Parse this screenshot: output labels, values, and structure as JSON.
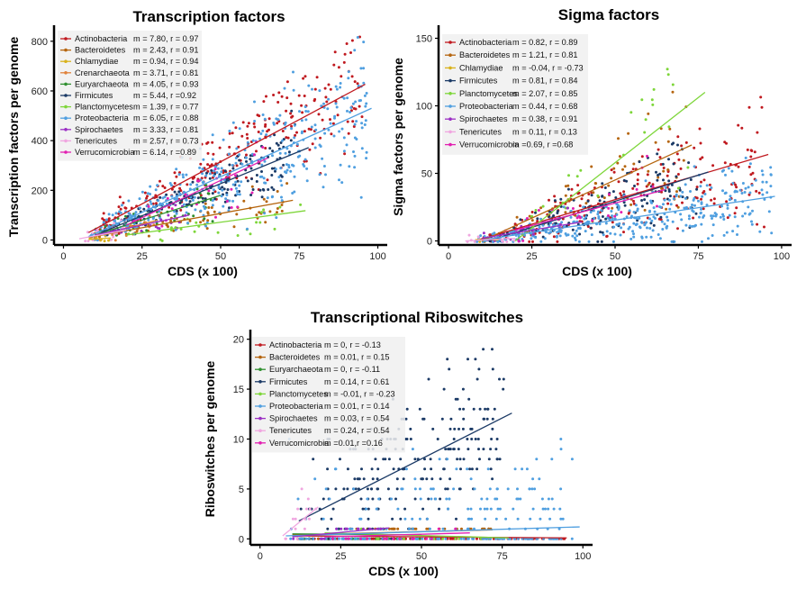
{
  "chart_data": [
    {
      "id": "tf",
      "type": "scatter",
      "title": "Transcription factors",
      "xlabel": "CDS (x 100)",
      "ylabel": "Transcription factors per genome",
      "xlim": [
        -3,
        103
      ],
      "ylim": [
        -20,
        850
      ],
      "xticks": [
        0,
        25,
        50,
        75,
        100
      ],
      "yticks": [
        0,
        200,
        400,
        600,
        800
      ],
      "legend_position": "top-left",
      "series": [
        {
          "name": "Actinobacteria",
          "stats": "m = 7.80, r = 0.97",
          "color": "#c0191f",
          "line": [
            [
              8,
              30
            ],
            [
              96,
              627
            ]
          ],
          "cloud": {
            "x": [
              10,
              95
            ],
            "n": 230,
            "scatter": 0.18,
            "seed": 11
          }
        },
        {
          "name": "Bacteroidetes",
          "stats": "m = 2.43, r = 0.91",
          "color": "#b5650e",
          "line": [
            [
              8,
              10
            ],
            [
              73,
              160
            ]
          ],
          "cloud": {
            "x": [
              10,
              72
            ],
            "n": 70,
            "scatter": 0.2,
            "seed": 12
          }
        },
        {
          "name": "Chlamydiae",
          "stats": "m = 0.94, r = 0.94",
          "color": "#d9b21c",
          "line": [
            [
              8,
              2
            ],
            [
              15,
              8
            ]
          ],
          "cloud": {
            "x": [
              8,
              15
            ],
            "n": 10,
            "scatter": 0.2,
            "seed": 13
          }
        },
        {
          "name": "Crenarchaeota",
          "stats": "m = 3.71, r = 0.81",
          "color": "#e0823b",
          "line": [
            [
              10,
              15
            ],
            [
              30,
              80
            ]
          ],
          "cloud": {
            "x": [
              10,
              30
            ],
            "n": 20,
            "scatter": 0.25,
            "seed": 14
          }
        },
        {
          "name": "Euryarchaeota",
          "stats": "m = 4.05, r = 0.93",
          "color": "#2f8f2f",
          "line": [
            [
              10,
              20
            ],
            [
              50,
              180
            ]
          ],
          "cloud": {
            "x": [
              10,
              50
            ],
            "n": 40,
            "scatter": 0.22,
            "seed": 15
          }
        },
        {
          "name": "Firmicutes",
          "stats": "m = 5.44, r =0.92",
          "color": "#1b3a66",
          "line": [
            [
              12,
              30
            ],
            [
              78,
              372
            ]
          ],
          "cloud": {
            "x": [
              12,
              75
            ],
            "n": 150,
            "scatter": 0.2,
            "seed": 16
          }
        },
        {
          "name": "Planctomycetes",
          "stats": "m = 1.39, r = 0.77",
          "color": "#7ed63a",
          "line": [
            [
              20,
              20
            ],
            [
              77,
              118
            ]
          ],
          "cloud": {
            "x": [
              20,
              76
            ],
            "n": 25,
            "scatter": 0.3,
            "seed": 17
          }
        },
        {
          "name": "Proteobacteria",
          "stats": "m = 6.05, r = 0.88",
          "color": "#4f9fe0",
          "line": [
            [
              8,
              14
            ],
            [
              98,
              530
            ]
          ],
          "cloud": {
            "x": [
              8,
              97
            ],
            "n": 380,
            "scatter": 0.28,
            "seed": 18
          }
        },
        {
          "name": "Spirochaetes",
          "stats": "m = 3.33, r = 0.81",
          "color": "#9b2fc4",
          "line": [
            [
              10,
              20
            ],
            [
              40,
              100
            ]
          ],
          "cloud": {
            "x": [
              10,
              40
            ],
            "n": 20,
            "scatter": 0.25,
            "seed": 19
          }
        },
        {
          "name": "Tenericutes",
          "stats": "m = 2.57, r = 0.73",
          "color": "#f0a6e0",
          "line": [
            [
              5,
              5
            ],
            [
              20,
              40
            ]
          ],
          "cloud": {
            "x": [
              5,
              20
            ],
            "n": 20,
            "scatter": 0.3,
            "seed": 20
          }
        },
        {
          "name": "Verrucomicrobia",
          "stats": "m = 6.14, r =0.89",
          "color": "#e21fb1",
          "line": [
            [
              20,
              60
            ],
            [
              65,
              330
            ]
          ],
          "cloud": {
            "x": [
              20,
              65
            ],
            "n": 25,
            "scatter": 0.25,
            "seed": 21
          }
        }
      ]
    },
    {
      "id": "sigma",
      "type": "scatter",
      "title": "Sigma factors",
      "xlabel": "CDS (x 100)",
      "ylabel": "Sigma factors per genome",
      "xlim": [
        -3,
        103
      ],
      "ylim": [
        -3,
        157
      ],
      "xticks": [
        0,
        25,
        50,
        75,
        100
      ],
      "yticks": [
        0,
        50,
        100,
        150
      ],
      "legend_position": "top-left",
      "series": [
        {
          "name": "Actinobacteria",
          "stats": "m = 0.82, r = 0.89",
          "color": "#c0191f",
          "line": [
            [
              8,
              0
            ],
            [
              96,
              64
            ]
          ],
          "cloud": {
            "x": [
              10,
              95
            ],
            "n": 200,
            "scatter": 0.35,
            "seed": 31
          }
        },
        {
          "name": "Bacteroidetes",
          "stats": "m = 1.21, r = 0.81",
          "color": "#b5650e",
          "line": [
            [
              10,
              0
            ],
            [
              73,
              71
            ]
          ],
          "cloud": {
            "x": [
              10,
              72
            ],
            "n": 70,
            "scatter": 0.35,
            "seed": 32
          }
        },
        {
          "name": "Chlamydiae",
          "stats": "m = -0.04, r = -0.73",
          "color": "#d9b21c",
          "line": [
            [
              8,
              1
            ],
            [
              15,
              0.7
            ]
          ],
          "cloud": {
            "x": [
              8,
              15
            ],
            "n": 10,
            "scatter": 0.2,
            "seed": 33
          }
        },
        {
          "name": "Firmicutes",
          "stats": "m = 0.81, r = 0.84",
          "color": "#1b3a66",
          "line": [
            [
              12,
              0
            ],
            [
              78,
              51
            ]
          ],
          "cloud": {
            "x": [
              12,
              75
            ],
            "n": 150,
            "scatter": 0.35,
            "seed": 34
          }
        },
        {
          "name": "Planctomycetes",
          "stats": "m = 2.07, r = 0.85",
          "color": "#7ed63a",
          "line": [
            [
              20,
              0
            ],
            [
              77,
              110
            ]
          ],
          "cloud": {
            "x": [
              20,
              76
            ],
            "n": 25,
            "scatter": 0.35,
            "seed": 35
          }
        },
        {
          "name": "Proteobacteria",
          "stats": "m = 0.44, r = 0.68",
          "color": "#4f9fe0",
          "line": [
            [
              8,
              0
            ],
            [
              98,
              33
            ]
          ],
          "cloud": {
            "x": [
              8,
              97
            ],
            "n": 380,
            "scatter": 0.45,
            "seed": 36
          }
        },
        {
          "name": "Spirochaetes",
          "stats": "m = 0.38, r = 0.91",
          "color": "#9b2fc4",
          "line": [
            [
              10,
              2
            ],
            [
              40,
              14
            ]
          ],
          "cloud": {
            "x": [
              10,
              40
            ],
            "n": 20,
            "scatter": 0.3,
            "seed": 37
          }
        },
        {
          "name": "Tenericutes",
          "stats": "m = 0.11, r = 0.13",
          "color": "#f0a6e0",
          "line": [
            [
              5,
              0
            ],
            [
              20,
              2
            ]
          ],
          "cloud": {
            "x": [
              5,
              20
            ],
            "n": 15,
            "scatter": 0.5,
            "seed": 38
          }
        },
        {
          "name": "Verrucomicrobia",
          "stats": "m =0.69, r =0.68",
          "color": "#e21fb1",
          "line": [
            [
              20,
              8
            ],
            [
              65,
              38
            ]
          ],
          "cloud": {
            "x": [
              20,
              65
            ],
            "n": 25,
            "scatter": 0.35,
            "seed": 39
          }
        }
      ]
    },
    {
      "id": "ribo",
      "type": "scatter",
      "title": "Transcriptional Riboswitches",
      "xlabel": "CDS (x 100)",
      "ylabel": "Riboswitches per genome",
      "xlim": [
        -3,
        103
      ],
      "ylim": [
        -0.6,
        20.6
      ],
      "xticks": [
        0,
        25,
        50,
        75,
        100
      ],
      "yticks": [
        0,
        5,
        10,
        15,
        20
      ],
      "legend_position": "top-left",
      "series": [
        {
          "name": "Actinobacteria",
          "stats": "m = 0, r = -0.13",
          "color": "#c0191f",
          "line": [
            [
              10,
              0.3
            ],
            [
              95,
              0.1
            ]
          ],
          "cloud": {
            "x": [
              10,
              95
            ],
            "n": 100,
            "scatter": 0.0,
            "seed": 41
          }
        },
        {
          "name": "Bacteroidetes",
          "stats": "m = 0.01, r = 0.15",
          "color": "#b5650e",
          "line": [
            [
              10,
              0.4
            ],
            [
              72,
              0.9
            ]
          ],
          "cloud": {
            "x": [
              10,
              72
            ],
            "n": 40,
            "scatter": 0.0,
            "seed": 42
          }
        },
        {
          "name": "Euryarchaeota",
          "stats": "m = 0, r = -0.11",
          "color": "#2f8f2f",
          "line": [
            [
              10,
              0.5
            ],
            [
              50,
              0.4
            ]
          ],
          "cloud": {
            "x": [
              10,
              50
            ],
            "n": 25,
            "scatter": 0.0,
            "seed": 43
          }
        },
        {
          "name": "Firmicutes",
          "stats": "m = 0.14, r = 0.61",
          "color": "#1b3a66",
          "line": [
            [
              12,
              1.8
            ],
            [
              78,
              12.6
            ]
          ],
          "cloud": {
            "x": [
              12,
              76
            ],
            "n": 220,
            "scatter": 0.55,
            "seed": 44
          }
        },
        {
          "name": "Planctomycetes",
          "stats": "m = -0.01, r = -0.23",
          "color": "#7ed63a",
          "line": [
            [
              20,
              0.6
            ],
            [
              77,
              0.1
            ]
          ],
          "cloud": {
            "x": [
              20,
              76
            ],
            "n": 15,
            "scatter": 0.0,
            "seed": 45
          }
        },
        {
          "name": "Proteobacteria",
          "stats": "m = 0.01, r = 0.14",
          "color": "#4f9fe0",
          "line": [
            [
              8,
              0.3
            ],
            [
              99,
              1.2
            ]
          ],
          "cloud": {
            "x": [
              8,
              97
            ],
            "n": 220,
            "scatter": 0.6,
            "seed": 46
          }
        },
        {
          "name": "Spirochaetes",
          "stats": "m = 0.03, r = 0.54",
          "color": "#9b2fc4",
          "line": [
            [
              10,
              0.2
            ],
            [
              40,
              1.1
            ]
          ],
          "cloud": {
            "x": [
              10,
              40
            ],
            "n": 15,
            "scatter": 0.0,
            "seed": 47
          }
        },
        {
          "name": "Tenericutes",
          "stats": "m = 0.24, r = 0.54",
          "color": "#f0a6e0",
          "line": [
            [
              7,
              0.3
            ],
            [
              18,
              3.2
            ]
          ],
          "cloud": {
            "x": [
              7,
              18
            ],
            "n": 15,
            "scatter": 0.3,
            "seed": 48
          }
        },
        {
          "name": "Verrucomicrobia",
          "stats": "m =0.01,r =0.16",
          "color": "#e21fb1",
          "line": [
            [
              20,
              0.2
            ],
            [
              65,
              0.6
            ]
          ],
          "cloud": {
            "x": [
              20,
              65
            ],
            "n": 15,
            "scatter": 0.0,
            "seed": 49
          }
        }
      ]
    }
  ]
}
